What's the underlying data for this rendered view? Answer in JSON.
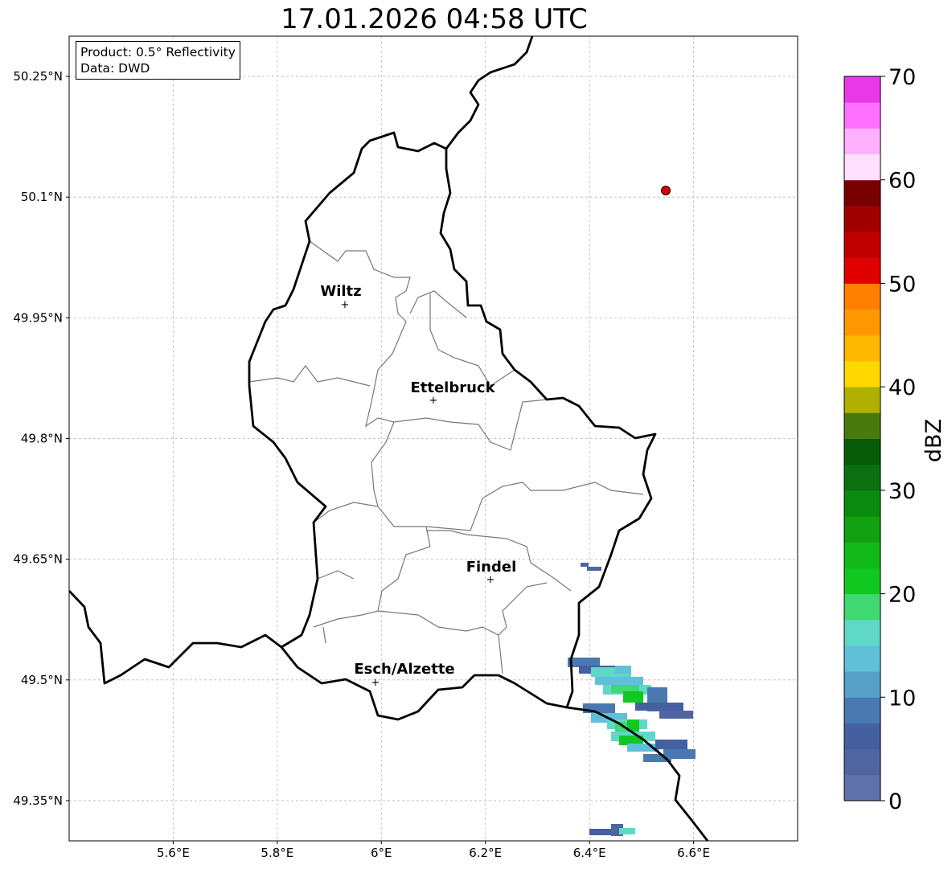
{
  "title": "17.01.2026 04:58 UTC",
  "info": {
    "product": "Product: 0.5° Reflectivity",
    "data": "Data: DWD"
  },
  "axes": {
    "lon_ticks": [
      "5.6°E",
      "5.8°E",
      "6°E",
      "6.2°E",
      "6.4°E",
      "6.6°E"
    ],
    "lat_ticks": [
      "50.25°N",
      "50.1°N",
      "49.95°N",
      "49.8°N",
      "49.65°N",
      "49.5°N",
      "49.35°N"
    ],
    "lon_range": [
      5.4,
      6.8
    ],
    "lat_range": [
      49.3,
      50.3
    ]
  },
  "cities": [
    {
      "name": "Wiltz"
    },
    {
      "name": "Ettelbruck"
    },
    {
      "name": "Findel"
    },
    {
      "name": "Esch/Alzette"
    }
  ],
  "radar_site_color": "#e00000",
  "colorbar": {
    "label": "dBZ",
    "ticks": [
      "0",
      "10",
      "20",
      "30",
      "40",
      "50",
      "60",
      "70"
    ],
    "range": [
      0,
      70
    ],
    "step": 2.5,
    "colors": [
      "#6070a8",
      "#5065a0",
      "#4560a0",
      "#4a78b0",
      "#58a0c8",
      "#60c0d8",
      "#60d8c8",
      "#40d870",
      "#10c820",
      "#10b818",
      "#10a010",
      "#0a8a10",
      "#0a7010",
      "#075a08",
      "#487a10",
      "#b0b000",
      "#ffd800",
      "#ffb800",
      "#ff9800",
      "#ff8000",
      "#e00000",
      "#c00000",
      "#a00000",
      "#780000",
      "#ffe0ff",
      "#ffb0ff",
      "#ff70ff",
      "#e838e8"
    ]
  }
}
